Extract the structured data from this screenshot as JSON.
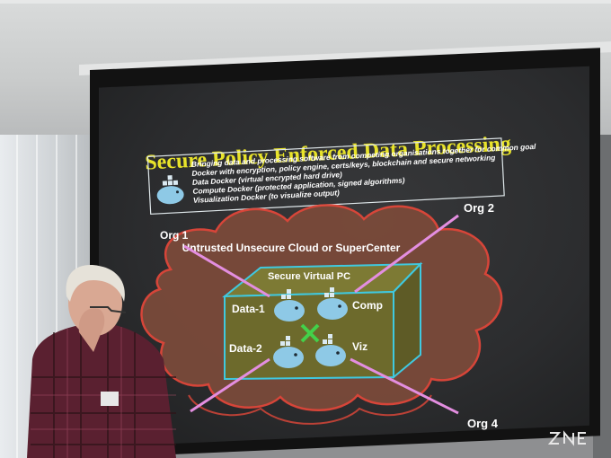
{
  "slide": {
    "title": "Secure Policy Enforced Data Processing",
    "bullets": [
      "Bringing data and processing software from competing organisations together for common goal",
      "Docker with encryption, policy engine, certs/keys, blockchain and secure networking",
      "Data Docker (virtual encrypted hard drive)",
      "Compute Docker (protected application, signed algorithms)",
      "Visualization Docker (to visualize output)"
    ],
    "cloud_label": "Untrusted Unsecure Cloud or SuperCenter",
    "vpc_label": "Secure Virtual PC",
    "containers": {
      "data1": "Data-1",
      "data2": "Data-2",
      "comp": "Comp",
      "viz": "Viz"
    },
    "orgs": {
      "org1": "Org 1",
      "org2": "Org 2",
      "org4": "Org 4"
    },
    "logo_text": "SNE"
  },
  "colors": {
    "title": "#e8e32a",
    "text": "#ffffff",
    "cloud_fill": "#7a4a3a",
    "cloud_stroke": "#e0473a",
    "box_stroke": "#3fc9e0",
    "box_fill": "#6d6a2c",
    "org_line": "#e38ee0",
    "whale": "#8ec9e6"
  },
  "icons": [
    "docker-whale-icon",
    "cross-connect-icon",
    "sne-logo"
  ]
}
